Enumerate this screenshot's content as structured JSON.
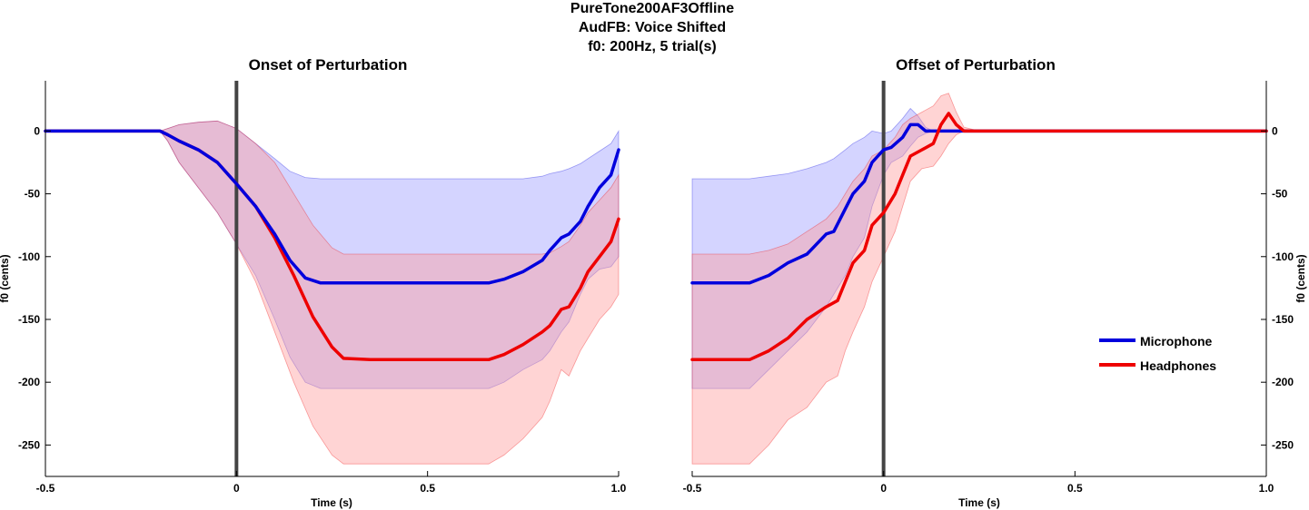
{
  "suptitle": [
    "PureTone200AF3Offline",
    "AudFB: Voice Shifted",
    "f0: 200Hz, 5 trial(s)"
  ],
  "colors": {
    "microphone": "#0000dd",
    "headphones": "#ee0000",
    "microphone_band": "#9999ff",
    "headphones_band": "#ff9999",
    "event_line": "#444444"
  },
  "chart_data": [
    {
      "type": "line",
      "title": "Onset of Perturbation",
      "xlabel": "Time (s)",
      "ylabel": "f0 (cents)",
      "xlim": [
        -0.5,
        1.0
      ],
      "ylim": [
        -275,
        40
      ],
      "xticks": [
        "-0.5",
        "0",
        "0.5",
        "1.0"
      ],
      "yticks": [
        "0",
        "-50",
        "-100",
        "-150",
        "-200",
        "-250"
      ],
      "yaxis_side": "left",
      "event_line_x": 0,
      "grid": false,
      "series": [
        {
          "name": "Microphone",
          "x": [
            -0.5,
            -0.2,
            -0.18,
            -0.15,
            -0.1,
            -0.05,
            0.0,
            0.05,
            0.1,
            0.14,
            0.18,
            0.22,
            0.3,
            0.4,
            0.5,
            0.6,
            0.66,
            0.7,
            0.75,
            0.8,
            0.82,
            0.85,
            0.87,
            0.9,
            0.92,
            0.95,
            0.98,
            1.0
          ],
          "values": [
            0,
            0,
            -3,
            -8,
            -15,
            -25,
            -42,
            -60,
            -82,
            -103,
            -117,
            -121,
            -121,
            -121,
            -121,
            -121,
            -121,
            -118,
            -112,
            -103,
            -95,
            -85,
            -82,
            -72,
            -60,
            -45,
            -35,
            -15
          ],
          "band_upper": [
            0,
            0,
            2,
            5,
            7,
            8,
            2,
            -10,
            -22,
            -32,
            -37,
            -38,
            -38,
            -38,
            -38,
            -38,
            -38,
            -38,
            -38,
            -36,
            -34,
            -32,
            -30,
            -26,
            -22,
            -16,
            -10,
            0
          ],
          "band_lower": [
            0,
            0,
            -8,
            -25,
            -45,
            -65,
            -90,
            -115,
            -150,
            -180,
            -200,
            -205,
            -205,
            -205,
            -205,
            -205,
            -205,
            -200,
            -190,
            -182,
            -175,
            -160,
            -152,
            -130,
            -118,
            -110,
            -108,
            -100
          ]
        },
        {
          "name": "Headphones",
          "x": [
            -0.5,
            -0.2,
            -0.18,
            -0.15,
            -0.1,
            -0.05,
            0.0,
            0.05,
            0.1,
            0.15,
            0.2,
            0.25,
            0.28,
            0.35,
            0.45,
            0.55,
            0.66,
            0.7,
            0.75,
            0.8,
            0.82,
            0.85,
            0.87,
            0.9,
            0.92,
            0.95,
            0.98,
            1.0
          ],
          "values": [
            0,
            0,
            -3,
            -8,
            -15,
            -25,
            -42,
            -60,
            -85,
            -115,
            -148,
            -172,
            -181,
            -182,
            -182,
            -182,
            -182,
            -178,
            -170,
            -160,
            -155,
            -142,
            -140,
            -125,
            -112,
            -100,
            -88,
            -70
          ],
          "band_upper": [
            0,
            0,
            2,
            5,
            7,
            8,
            2,
            -10,
            -25,
            -50,
            -75,
            -93,
            -98,
            -98,
            -98,
            -98,
            -98,
            -98,
            -98,
            -98,
            -97,
            -92,
            -88,
            -75,
            -65,
            -55,
            -45,
            -35
          ],
          "band_lower": [
            0,
            0,
            -8,
            -25,
            -45,
            -65,
            -90,
            -120,
            -160,
            -200,
            -235,
            -258,
            -265,
            -265,
            -265,
            -265,
            -265,
            -258,
            -245,
            -228,
            -215,
            -190,
            -195,
            -175,
            -165,
            -150,
            -140,
            -130
          ]
        }
      ]
    },
    {
      "type": "line",
      "title": "Offset of Perturbation",
      "xlabel": "Time (s)",
      "ylabel": "f0 (cents)",
      "xlim": [
        -0.5,
        1.0
      ],
      "ylim": [
        -275,
        40
      ],
      "xticks": [
        "-0.5",
        "0",
        "0.5",
        "1.0"
      ],
      "yticks": [
        "0",
        "-50",
        "-100",
        "-150",
        "-200",
        "-250"
      ],
      "yaxis_side": "right",
      "event_line_x": 0,
      "grid": false,
      "legend": {
        "position": "right",
        "entries": [
          "Microphone",
          "Headphones"
        ]
      },
      "series": [
        {
          "name": "Microphone",
          "x": [
            -0.5,
            -0.35,
            -0.3,
            -0.25,
            -0.2,
            -0.15,
            -0.13,
            -0.1,
            -0.08,
            -0.05,
            -0.03,
            0.0,
            0.02,
            0.05,
            0.07,
            0.09,
            0.11,
            0.13,
            0.15,
            0.2,
            0.3,
            0.5,
            1.0
          ],
          "values": [
            -121,
            -121,
            -115,
            -105,
            -98,
            -82,
            -80,
            -62,
            -50,
            -40,
            -25,
            -15,
            -13,
            -5,
            5,
            5,
            0,
            0,
            0,
            0,
            0,
            0,
            0
          ],
          "band_upper": [
            -38,
            -38,
            -36,
            -34,
            -30,
            -25,
            -22,
            -15,
            -10,
            -5,
            0,
            -2,
            0,
            10,
            18,
            12,
            3,
            0,
            0,
            0,
            0,
            0,
            0
          ],
          "band_lower": [
            -205,
            -205,
            -190,
            -175,
            -160,
            -140,
            -130,
            -115,
            -100,
            -85,
            -60,
            -35,
            -25,
            -20,
            -12,
            -5,
            -2,
            0,
            0,
            0,
            0,
            0,
            0
          ]
        },
        {
          "name": "Headphones",
          "x": [
            -0.5,
            -0.35,
            -0.3,
            -0.25,
            -0.2,
            -0.15,
            -0.12,
            -0.1,
            -0.08,
            -0.05,
            -0.03,
            0.0,
            0.03,
            0.05,
            0.07,
            0.1,
            0.13,
            0.15,
            0.17,
            0.19,
            0.21,
            0.25,
            0.5,
            1.0
          ],
          "values": [
            -182,
            -182,
            -175,
            -165,
            -150,
            -140,
            -135,
            -120,
            -105,
            -95,
            -75,
            -65,
            -50,
            -35,
            -20,
            -15,
            -10,
            5,
            14,
            5,
            0,
            0,
            0,
            0
          ],
          "band_upper": [
            -98,
            -98,
            -95,
            -90,
            -80,
            -70,
            -60,
            -50,
            -40,
            -30,
            -20,
            -15,
            -5,
            5,
            10,
            15,
            20,
            28,
            30,
            15,
            3,
            0,
            0,
            0
          ],
          "band_lower": [
            -265,
            -265,
            -250,
            -230,
            -220,
            -200,
            -195,
            -175,
            -160,
            -140,
            -120,
            -100,
            -80,
            -60,
            -40,
            -30,
            -28,
            -20,
            -10,
            -3,
            0,
            0,
            0,
            0
          ]
        }
      ]
    }
  ]
}
